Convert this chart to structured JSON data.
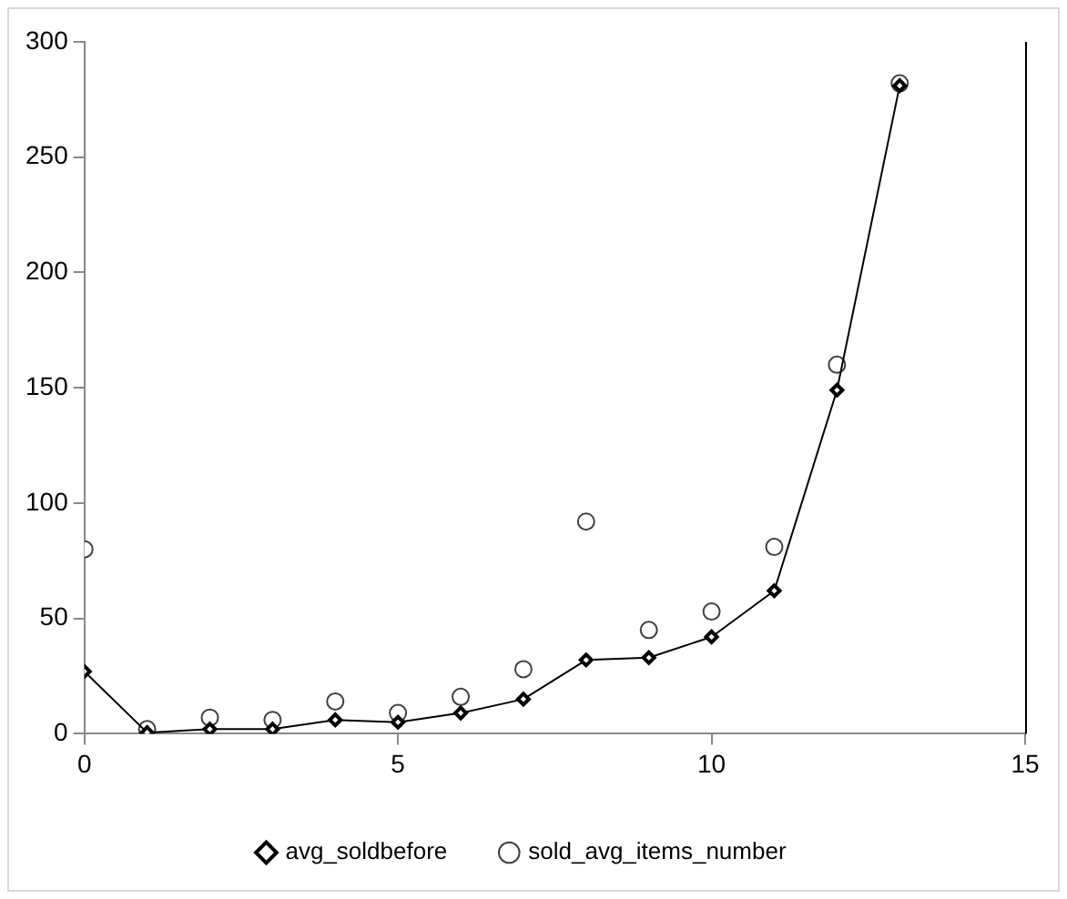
{
  "chart_data": {
    "type": "line",
    "x": [
      0,
      1,
      2,
      3,
      4,
      5,
      6,
      7,
      8,
      9,
      10,
      11,
      12,
      13
    ],
    "series": [
      {
        "name": "avg_soldbefore",
        "color": "#000000",
        "marker": "diamond",
        "values": [
          27,
          0.5,
          2,
          2,
          6,
          5,
          9,
          15,
          32,
          33,
          42,
          62,
          149,
          281
        ]
      },
      {
        "name": "sold_avg_items_number",
        "type": "scatter",
        "color": "#404040",
        "marker": "circle",
        "values": [
          80,
          2,
          7,
          6,
          14,
          9,
          16,
          28,
          92,
          45,
          53,
          81,
          160,
          282
        ]
      }
    ],
    "xlim": [
      0,
      15
    ],
    "xticks": [
      0,
      5,
      10,
      15
    ],
    "ylim": [
      0,
      300
    ],
    "yticks": [
      0,
      50,
      100,
      150,
      200,
      250,
      300
    ],
    "grid": false,
    "legend": "bottom"
  }
}
